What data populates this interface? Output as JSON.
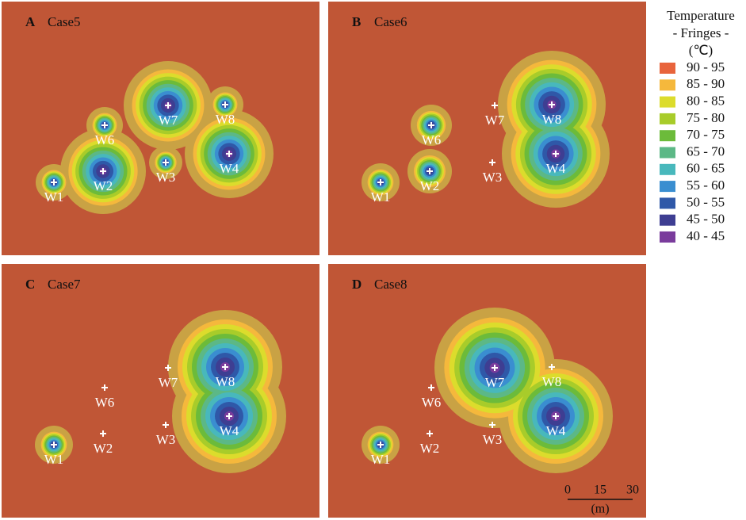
{
  "panels": [
    {
      "label": "A",
      "title": "Case5",
      "wells": [
        "W1",
        "W2",
        "W3",
        "W4",
        "W6",
        "W7",
        "W8"
      ]
    },
    {
      "label": "B",
      "title": "Case6",
      "wells": [
        "W1",
        "W2",
        "W3",
        "W4",
        "W6",
        "W7",
        "W8"
      ]
    },
    {
      "label": "C",
      "title": "Case7",
      "wells": [
        "W1",
        "W2",
        "W3",
        "W4",
        "W6",
        "W7",
        "W8"
      ]
    },
    {
      "label": "D",
      "title": "Case8",
      "wells": [
        "W1",
        "W2",
        "W3",
        "W4",
        "W6",
        "W7",
        "W8"
      ]
    }
  ],
  "legend": {
    "title": [
      "Temperature",
      "- Fringes -",
      "(℃)"
    ],
    "items": [
      {
        "label": "90 - 95",
        "color": "#e8643c"
      },
      {
        "label": "85 - 90",
        "color": "#f5b83c"
      },
      {
        "label": "80 - 85",
        "color": "#dcdc2c"
      },
      {
        "label": "75 - 80",
        "color": "#a8cc2a"
      },
      {
        "label": "70 - 75",
        "color": "#6cbb3a"
      },
      {
        "label": "65 - 70",
        "color": "#5cb886"
      },
      {
        "label": "60 - 65",
        "color": "#48b8bc"
      },
      {
        "label": "55 - 60",
        "color": "#3a8ed0"
      },
      {
        "label": "50 - 55",
        "color": "#2f58a8"
      },
      {
        "label": "45 - 50",
        "color": "#3e3e92"
      },
      {
        "label": "40 - 45",
        "color": "#7a3c9c"
      }
    ]
  },
  "scale_bar": {
    "ticks": [
      "0",
      "15",
      "30"
    ],
    "unit": "(m)"
  }
}
